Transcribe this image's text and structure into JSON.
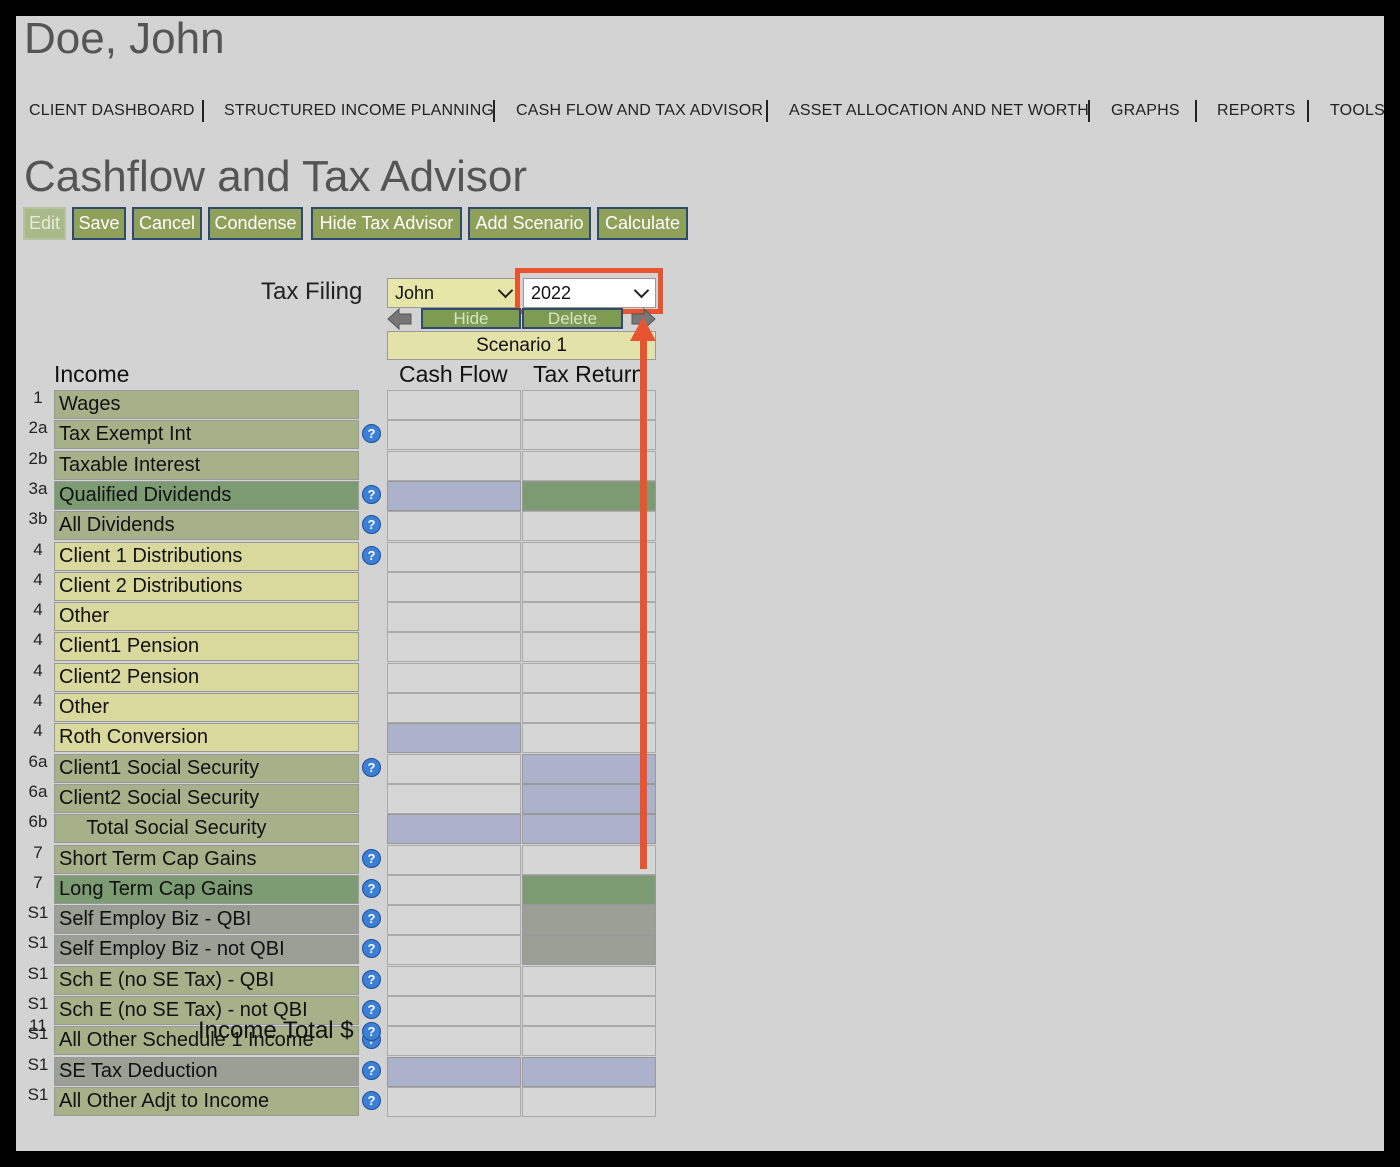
{
  "client_name": "Doe, John",
  "nav": [
    "CLIENT DASHBOARD",
    "STRUCTURED INCOME PLANNING",
    "CASH FLOW AND TAX ADVISOR",
    "ASSET ALLOCATION AND NET WORTH",
    "GRAPHS",
    "REPORTS",
    "TOOLS"
  ],
  "page_title": "Cashflow and Tax Advisor",
  "toolbar": {
    "edit": "Edit",
    "save": "Save",
    "cancel": "Cancel",
    "condense": "Condense",
    "hide_tax_advisor": "Hide Tax Advisor",
    "add_scenario": "Add Scenario",
    "calculate": "Calculate"
  },
  "tax_filing": {
    "label": "Tax Filing",
    "person": "John",
    "year": "2022"
  },
  "scenario": {
    "hide_label": "Hide",
    "delete_label": "Delete",
    "name": "Scenario 1"
  },
  "columns": {
    "section": "Income",
    "cash_flow": "Cash Flow",
    "tax_return": "Tax Return"
  },
  "rows": [
    {
      "num": "1",
      "label": "Wages",
      "help": false,
      "label_bg": "#a6b189",
      "cf": "w",
      "tr": "w"
    },
    {
      "num": "2a",
      "label": "Tax Exempt Int",
      "help": true,
      "label_bg": "#a6b189",
      "cf": "w",
      "tr": "w"
    },
    {
      "num": "2b",
      "label": "Taxable Interest",
      "help": false,
      "label_bg": "#a6b189",
      "cf": "w",
      "tr": "w"
    },
    {
      "num": "3a",
      "label": "Qualified Dividends",
      "help": true,
      "label_bg": "#7d9b73",
      "cf": "b",
      "tr": "g"
    },
    {
      "num": "3b",
      "label": "All Dividends",
      "help": true,
      "label_bg": "#a6b189",
      "cf": "w",
      "tr": "w"
    },
    {
      "num": "4",
      "label": "Client 1 Distributions",
      "help": true,
      "label_bg": "#d9d99e",
      "cf": "w",
      "tr": "w"
    },
    {
      "num": "4",
      "label": "Client 2 Distributions",
      "help": false,
      "label_bg": "#d9d99e",
      "cf": "w",
      "tr": "w"
    },
    {
      "num": "4",
      "label": "Other",
      "help": false,
      "label_bg": "#d9d99e",
      "cf": "w",
      "tr": "w"
    },
    {
      "num": "4",
      "label": "Client1 Pension",
      "help": false,
      "label_bg": "#d9d99e",
      "cf": "w",
      "tr": "w"
    },
    {
      "num": "4",
      "label": "Client2 Pension",
      "help": false,
      "label_bg": "#d9d99e",
      "cf": "w",
      "tr": "w"
    },
    {
      "num": "4",
      "label": "Other",
      "help": false,
      "label_bg": "#d9d99e",
      "cf": "w",
      "tr": "w"
    },
    {
      "num": "4",
      "label": "Roth Conversion",
      "help": false,
      "label_bg": "#d9d99e",
      "cf": "b",
      "tr": "w"
    },
    {
      "num": "6a",
      "label": "Client1 Social Security",
      "help": true,
      "label_bg": "#a6b189",
      "cf": "w",
      "tr": "b"
    },
    {
      "num": "6a",
      "label": "Client2 Social Security",
      "help": false,
      "label_bg": "#a6b189",
      "cf": "w",
      "tr": "b"
    },
    {
      "num": "6b",
      "label": "     Total Social Security",
      "help": false,
      "label_bg": "#a6b189",
      "cf": "b",
      "tr": "b"
    },
    {
      "num": "7",
      "label": "Short Term Cap Gains",
      "help": true,
      "label_bg": "#a6b189",
      "cf": "w",
      "tr": "w"
    },
    {
      "num": "7",
      "label": "Long Term Cap Gains",
      "help": true,
      "label_bg": "#7d9b73",
      "cf": "w",
      "tr": "g"
    },
    {
      "num": "S1",
      "label": "Self Employ Biz - QBI",
      "help": true,
      "label_bg": "#9b9f95",
      "cf": "w",
      "tr": "gr"
    },
    {
      "num": "S1",
      "label": "Self Employ Biz - not QBI",
      "help": true,
      "label_bg": "#9b9f95",
      "cf": "w",
      "tr": "gr"
    },
    {
      "num": "S1",
      "label": "Sch E (no SE Tax) - QBI",
      "help": true,
      "label_bg": "#a6b189",
      "cf": "w",
      "tr": "w"
    },
    {
      "num": "S1",
      "label": "Sch E (no SE Tax) - not QBI",
      "help": true,
      "label_bg": "#a6b189",
      "cf": "w",
      "tr": "w"
    },
    {
      "num": "S1",
      "label": "All Other Schedule 1 Income",
      "help": true,
      "label_bg": "#a6b189",
      "cf": "w",
      "tr": "w"
    },
    {
      "num": "S1",
      "label": "SE Tax Deduction",
      "help": true,
      "label_bg": "#9b9f95",
      "cf": "b",
      "tr": "b"
    },
    {
      "num": "S1",
      "label": "All Other Adjt to Income",
      "help": true,
      "label_bg": "#a6b189",
      "cf": "w",
      "tr": "w"
    }
  ],
  "total": {
    "num": "11",
    "label": "Income Total $"
  },
  "colors": {
    "highlight": "#e8542f",
    "button": "#8fa05a"
  }
}
